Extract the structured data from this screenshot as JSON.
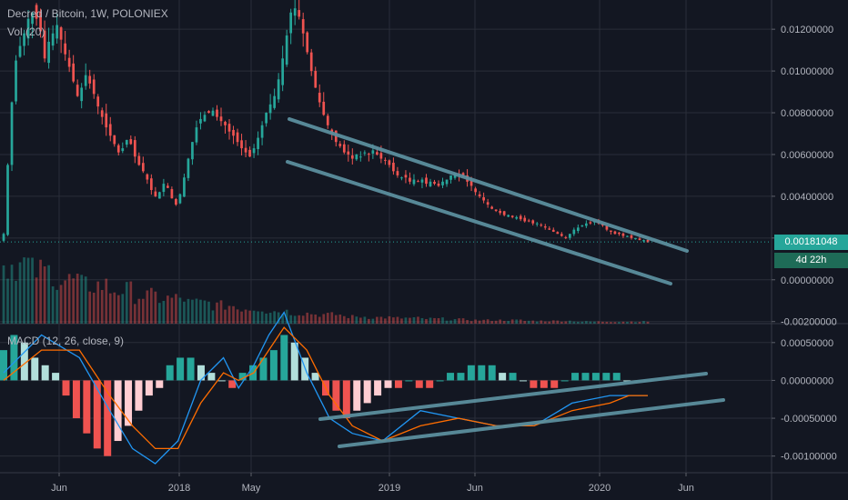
{
  "header": {
    "symbol_line": "Decred / Bitcoin, 1W, POLONIEX",
    "volume_label": "Vol (20)",
    "macd_label": "MACD (12, 26, close, 9)"
  },
  "price_badge": {
    "value": "0.00181048",
    "countdown": "4d 22h",
    "color": "#26a69a",
    "countdown_color": "#1e6b57"
  },
  "colors": {
    "background": "#131722",
    "grid": "#2a2e39",
    "up": "#26a69a",
    "down": "#ef5350",
    "macd_line": "#2196f3",
    "signal_line": "#ff6d00",
    "hist_pos_strong": "#26a69a",
    "hist_pos_weak": "#b2dfdb",
    "hist_neg_strong": "#ef5350",
    "hist_neg_weak": "#ffcdd2",
    "trendline": "#5b8f9e"
  },
  "chart_data": [
    {
      "type": "candlestick",
      "title": "Decred / Bitcoin, 1W, POLONIEX",
      "y_ticks": [
        "0.01200000",
        "0.01000000",
        "0.00800000",
        "0.00600000",
        "0.00400000",
        "0.00200000",
        "0.00000000",
        "-0.00200000"
      ],
      "ylim": [
        -0.0021,
        0.0134
      ],
      "last_price": 0.00181048,
      "x_ticks": [
        "Jun",
        "2018",
        "May",
        "2019",
        "Jun",
        "2020",
        "Jun"
      ],
      "close_series": [
        0.0022,
        0.0055,
        0.0085,
        0.0105,
        0.0112,
        0.0118,
        0.0125,
        0.0128,
        0.0125,
        0.0119,
        0.0106,
        0.0114,
        0.0118,
        0.0122,
        0.0115,
        0.0108,
        0.0102,
        0.0095,
        0.0088,
        0.0092,
        0.0098,
        0.0094,
        0.0089,
        0.0083,
        0.0078,
        0.0073,
        0.0069,
        0.0065,
        0.0061,
        0.0063,
        0.0067,
        0.0065,
        0.0059,
        0.0055,
        0.0052,
        0.0048,
        0.0043,
        0.004,
        0.0042,
        0.0046,
        0.0044,
        0.0039,
        0.0036,
        0.0041,
        0.0049,
        0.0058,
        0.0066,
        0.0073,
        0.0077,
        0.0079,
        0.008,
        0.0081,
        0.0078,
        0.0076,
        0.0074,
        0.0071,
        0.0069,
        0.0066,
        0.0063,
        0.0061,
        0.0059,
        0.0063,
        0.0068,
        0.0074,
        0.008,
        0.0084,
        0.0088,
        0.0096,
        0.0106,
        0.0117,
        0.0128,
        0.013,
        0.0126,
        0.0118,
        0.0109,
        0.01,
        0.0092,
        0.0085,
        0.0079,
        0.0074,
        0.007,
        0.0066,
        0.0064,
        0.0061,
        0.006,
        0.0058,
        0.006,
        0.0059,
        0.0061,
        0.006,
        0.0062,
        0.006,
        0.0058,
        0.0057,
        0.0055,
        0.0052,
        0.005,
        0.0049,
        0.0049,
        0.0047,
        0.0048,
        0.0047,
        0.0048,
        0.0046,
        0.0047,
        0.0046,
        0.0045,
        0.0047,
        0.0048,
        0.005,
        0.0051,
        0.005,
        0.0049,
        0.0047,
        0.0045,
        0.0042,
        0.004,
        0.0038,
        0.0036,
        0.0034,
        0.0033,
        0.0032,
        0.0031,
        0.0031,
        0.003,
        0.003,
        0.0029,
        0.0028,
        0.0028,
        0.0027,
        0.0027,
        0.0026,
        0.0025,
        0.0024,
        0.0023,
        0.0022,
        0.0021,
        0.002,
        0.0022,
        0.0024,
        0.0025,
        0.0026,
        0.0027,
        0.0027,
        0.0028,
        0.0027,
        0.0026,
        0.0024,
        0.0023,
        0.0022,
        0.0022,
        0.0021,
        0.0021,
        0.002,
        0.002,
        0.0019,
        0.0019,
        0.0018
      ]
    },
    {
      "type": "bar",
      "title": "Vol (20)",
      "relative_values": [
        0.85,
        0.75,
        0.62,
        0.55,
        0.48,
        0.4,
        0.36,
        0.3,
        0.26,
        0.22,
        0.18,
        0.15,
        0.13,
        0.1,
        0.09,
        0.08,
        0.07,
        0.06,
        0.05,
        0.05,
        0.04,
        0.04,
        0.03,
        0.03,
        0.03
      ]
    },
    {
      "type": "line",
      "title": "MACD (12, 26, close, 9)",
      "y_ticks": [
        "0.00050000",
        "0.00000000",
        "-0.00050000",
        "-0.00100000"
      ],
      "ylim": [
        -0.00122,
        0.00075
      ],
      "series": [
        {
          "name": "MACD",
          "x": [
            0,
            10,
            20,
            28,
            34,
            40,
            46,
            52,
            58,
            62,
            66,
            70,
            74,
            80,
            86,
            92,
            100,
            110,
            120,
            130,
            140,
            150,
            160,
            165,
            170
          ],
          "values": [
            0.0001,
            0.0006,
            0.0003,
            -0.0004,
            -0.0009,
            -0.0011,
            -0.0008,
            0.0,
            0.0003,
            -0.0001,
            0.0002,
            0.0006,
            0.0009,
            0.0001,
            -0.0005,
            -0.0007,
            -0.0008,
            -0.0004,
            -0.0005,
            -0.0006,
            -0.0006,
            -0.0003,
            -0.0002,
            -0.0002,
            -0.0002
          ]
        },
        {
          "name": "Signal",
          "x": [
            0,
            10,
            20,
            28,
            34,
            40,
            46,
            52,
            58,
            62,
            66,
            70,
            74,
            80,
            86,
            92,
            100,
            110,
            120,
            130,
            140,
            150,
            160,
            165,
            170
          ],
          "values": [
            0.0,
            0.0004,
            0.0004,
            -0.0002,
            -0.0006,
            -0.0009,
            -0.0009,
            -0.0003,
            0.0001,
            0.0,
            0.0001,
            0.0004,
            0.0007,
            0.0004,
            -0.0002,
            -0.0006,
            -0.0008,
            -0.0006,
            -0.0005,
            -0.0006,
            -0.0006,
            -0.0004,
            -0.0003,
            -0.0002,
            -0.0002
          ]
        }
      ],
      "histogram": [
        0.0004,
        0.0006,
        0.0005,
        0.0003,
        0.0002,
        0.0001,
        -0.0002,
        -0.0005,
        -0.0007,
        -0.0009,
        -0.001,
        -0.0008,
        -0.0006,
        -0.0004,
        -0.0002,
        -0.0001,
        0.0002,
        0.0003,
        0.0003,
        0.0002,
        0.0001,
        0.0,
        -0.0001,
        0.0001,
        0.0002,
        0.0003,
        0.0004,
        0.0006,
        0.0005,
        0.0003,
        0.0001,
        -0.0002,
        -0.0004,
        -0.0005,
        -0.0004,
        -0.0003,
        -0.0002,
        -0.0001,
        -0.0001,
        0.0,
        -0.0001,
        -0.0001,
        0.0,
        0.0001,
        0.0001,
        0.0002,
        0.0002,
        0.0002,
        0.0001,
        0.0001,
        0.0,
        -0.0001,
        -0.0001,
        -0.0001,
        0.0,
        0.0001,
        0.0001,
        0.0001,
        0.0001,
        0.0001,
        0.0,
        0.0,
        0.0
      ]
    }
  ]
}
